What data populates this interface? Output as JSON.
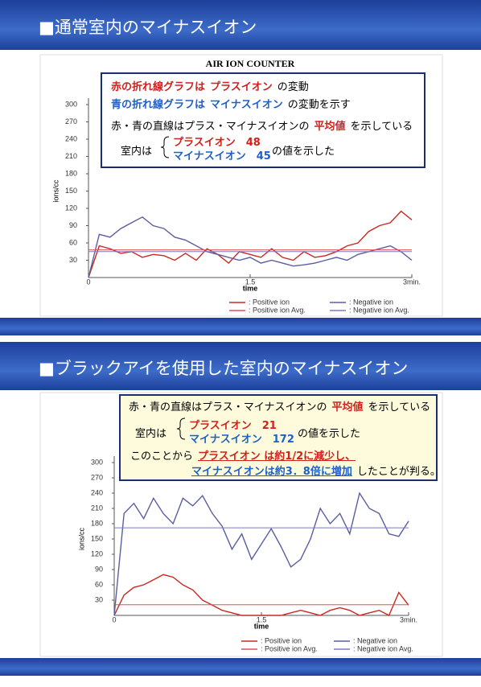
{
  "slides": [
    {
      "title": "■通常室内のマイナスイオン",
      "callout": [
        [
          {
            "text": "赤の折れ線グラフは",
            "color": "#d0211c"
          },
          {
            "text": "プラスイオン",
            "color": "#d0211c"
          },
          {
            "text": "の変動",
            "color": "#000"
          }
        ],
        [
          {
            "text": "青の折れ線グラフは",
            "color": "#1f5fc8"
          },
          {
            "text": "マイナスイオン",
            "color": "#1f5fc8"
          },
          {
            "text": "の変動を示す",
            "color": "#000"
          }
        ],
        [
          {
            "text": "赤・青の直線はプラス・マイナスイオンの",
            "color": "#000"
          },
          {
            "text": "平均値",
            "color": "#d0211c"
          },
          {
            "text": "を示している",
            "color": "#000"
          }
        ],
        [
          {
            "text": "室内は",
            "color": "#000"
          }
        ],
        [
          {
            "text": "プラスイオン　48",
            "color": "#d0211c"
          }
        ],
        [
          {
            "text": "マイナスイオン　45",
            "color": "#1f5fc8"
          }
        ],
        [
          {
            "text": "の値を示した",
            "color": "#000"
          }
        ]
      ]
    },
    {
      "title": "■ブラックアイを使用した室内のマイナスイオン",
      "callout": [
        [
          {
            "text": "赤・青の直線はプラス・マイナスイオンの",
            "color": "#000"
          },
          {
            "text": "平均値",
            "color": "#d0211c"
          },
          {
            "text": "を示している",
            "color": "#000"
          }
        ],
        [
          {
            "text": "室内は",
            "color": "#000"
          }
        ],
        [
          {
            "text": "プラスイオン　21",
            "color": "#d0211c"
          }
        ],
        [
          {
            "text": "マイナスイオン　172",
            "color": "#1f5fc8"
          }
        ],
        [
          {
            "text": "の値を示した",
            "color": "#000"
          }
        ],
        [
          {
            "text": "このことから",
            "color": "#000"
          },
          {
            "text": "プラスイオン は約1/2に減少し、",
            "color": "#d0211c",
            "underline": true
          }
        ],
        [
          {
            "text": "マイナスイオンは約3．8倍に増加",
            "color": "#1f5fc8",
            "underline": true
          },
          {
            "text": "したことが判る。",
            "color": "#000"
          }
        ]
      ]
    }
  ],
  "chart_data": [
    {
      "type": "line",
      "title": "AIR ION COUNTER",
      "xlabel": "time",
      "ylabel": "ions/cc",
      "xlim": [
        0,
        3
      ],
      "xticks": [
        0,
        1.5,
        {
          "value": 3,
          "label": "3min."
        }
      ],
      "ylim": [
        0,
        300
      ],
      "yticks": [
        30,
        60,
        90,
        120,
        150,
        180,
        210,
        240,
        270,
        300
      ],
      "x": [
        0,
        0.1,
        0.2,
        0.3,
        0.4,
        0.5,
        0.6,
        0.7,
        0.8,
        0.9,
        1.0,
        1.1,
        1.2,
        1.3,
        1.4,
        1.5,
        1.6,
        1.7,
        1.8,
        1.9,
        2.0,
        2.1,
        2.2,
        2.3,
        2.4,
        2.5,
        2.6,
        2.7,
        2.8,
        2.9,
        3.0
      ],
      "series": [
        {
          "name": ": Positive ion",
          "color": "#c8281e",
          "values": [
            0,
            55,
            50,
            42,
            45,
            35,
            40,
            38,
            30,
            42,
            30,
            50,
            40,
            25,
            45,
            40,
            35,
            50,
            35,
            30,
            45,
            35,
            38,
            45,
            55,
            60,
            80,
            90,
            95,
            115,
            100
          ]
        },
        {
          "name": ": Negative ion",
          "color": "#5a5ea0",
          "values": [
            0,
            75,
            70,
            85,
            95,
            105,
            90,
            85,
            70,
            65,
            55,
            45,
            40,
            35,
            30,
            35,
            25,
            30,
            25,
            20,
            22,
            25,
            30,
            35,
            30,
            40,
            45,
            50,
            55,
            45,
            30
          ]
        },
        {
          "name": ": Positive ion Avg.",
          "color": "#e05050",
          "x": [
            0,
            3
          ],
          "values": [
            48,
            48
          ]
        },
        {
          "name": ": Negative ion Avg.",
          "color": "#7a7ac0",
          "x": [
            0,
            3
          ],
          "values": [
            45,
            45
          ]
        }
      ]
    },
    {
      "type": "line",
      "xlabel": "time",
      "ylabel": "ions/cc",
      "xlim": [
        0,
        3
      ],
      "xticks": [
        0,
        1.5,
        {
          "value": 3,
          "label": "3min."
        }
      ],
      "ylim": [
        0,
        300
      ],
      "yticks": [
        30,
        60,
        90,
        120,
        150,
        180,
        210,
        240,
        270,
        300
      ],
      "x": [
        0,
        0.1,
        0.2,
        0.3,
        0.4,
        0.5,
        0.6,
        0.7,
        0.8,
        0.9,
        1.0,
        1.1,
        1.2,
        1.3,
        1.4,
        1.5,
        1.6,
        1.7,
        1.8,
        1.9,
        2.0,
        2.1,
        2.2,
        2.3,
        2.4,
        2.5,
        2.6,
        2.7,
        2.8,
        2.9,
        3.0
      ],
      "series": [
        {
          "name": ": Positive ion",
          "color": "#c8281e",
          "values": [
            0,
            40,
            55,
            60,
            70,
            80,
            75,
            60,
            50,
            30,
            20,
            10,
            5,
            0,
            0,
            0,
            0,
            0,
            5,
            10,
            5,
            0,
            10,
            15,
            10,
            0,
            5,
            10,
            0,
            45,
            20
          ]
        },
        {
          "name": ": Negative ion",
          "color": "#5a5ea0",
          "values": [
            0,
            200,
            220,
            190,
            230,
            200,
            180,
            230,
            215,
            235,
            200,
            175,
            130,
            160,
            110,
            140,
            170,
            135,
            95,
            110,
            150,
            210,
            180,
            200,
            160,
            240,
            210,
            200,
            160,
            155,
            185
          ]
        },
        {
          "name": ": Positive ion Avg.",
          "color": "#e05050",
          "x": [
            0,
            3
          ],
          "values": [
            21,
            21
          ]
        },
        {
          "name": ": Negative ion Avg.",
          "color": "#7a7ac0",
          "x": [
            0,
            3
          ],
          "values": [
            172,
            172
          ]
        }
      ]
    }
  ]
}
